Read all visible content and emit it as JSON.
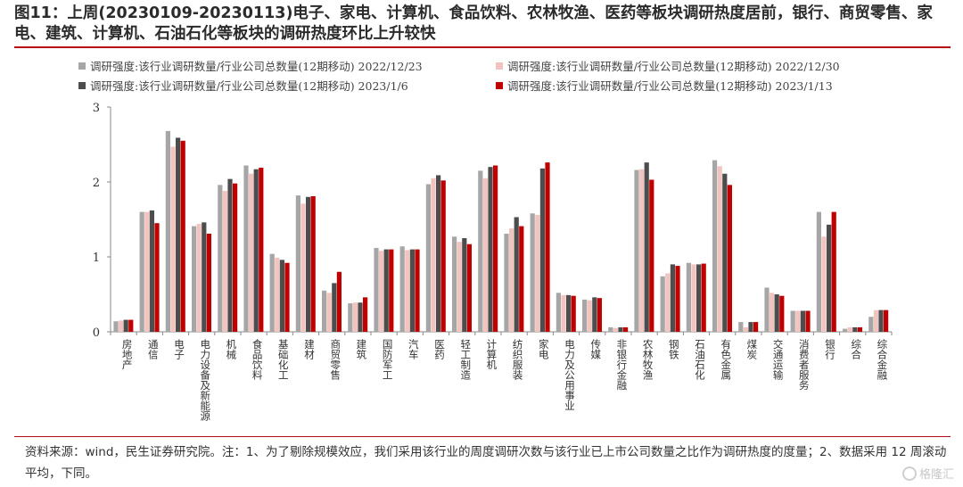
{
  "header": {
    "title": "图11：上周(20230109-20230113)电子、家电、计算机、食品饮料、农林牧渔、医药等板块调研热度居前，银行、商贸零售、家电、建筑、计算机、石油石化等板块的调研热度环比上升较快"
  },
  "chart_data": {
    "type": "bar",
    "ylim": [
      0,
      3
    ],
    "yticks": [
      0,
      1,
      2,
      3
    ],
    "grid": false,
    "legend_position": "top",
    "categories": [
      "房地产",
      "通信",
      "电子",
      "电力设备及新能源",
      "机械",
      "食品饮料",
      "基础化工",
      "建材",
      "商贸零售",
      "建筑",
      "国防军工",
      "汽车",
      "医药",
      "轻工制造",
      "计算机",
      "纺织服装",
      "家电",
      "电力及公用事业",
      "传媒",
      "非银行金融",
      "农林牧渔",
      "钢铁",
      "石油石化",
      "有色金属",
      "煤炭",
      "交通运输",
      "消费者服务",
      "银行",
      "综合",
      "综合金融"
    ],
    "series": [
      {
        "name": "调研强度:该行业调研数量/行业公司总数量(12期移动) 2022/12/23",
        "color": "#a6a6a6",
        "values": [
          0.14,
          1.6,
          2.68,
          1.41,
          1.96,
          2.22,
          1.04,
          1.82,
          0.55,
          0.38,
          1.12,
          1.14,
          1.97,
          1.27,
          2.15,
          1.31,
          1.58,
          0.52,
          0.43,
          0.06,
          2.16,
          0.74,
          0.92,
          2.29,
          0.13,
          0.59,
          0.28,
          1.6,
          0.04,
          0.2
        ]
      },
      {
        "name": "调研强度:该行业调研数量/行业公司总数量(12期移动) 2022/12/30",
        "color": "#f2c4c0",
        "values": [
          0.15,
          1.6,
          2.47,
          1.44,
          1.88,
          2.11,
          0.99,
          1.71,
          0.52,
          0.39,
          1.08,
          1.09,
          2.05,
          1.2,
          2.05,
          1.38,
          1.56,
          0.49,
          0.42,
          0.05,
          2.17,
          0.78,
          0.9,
          2.21,
          0.06,
          0.52,
          0.28,
          1.27,
          0.06,
          0.29
        ]
      },
      {
        "name": "调研强度:该行业调研数量/行业公司总数量(12期移动) 2023/1/6",
        "color": "#4d4d4d",
        "values": [
          0.16,
          1.62,
          2.59,
          1.46,
          2.04,
          2.17,
          0.96,
          1.8,
          0.65,
          0.39,
          1.1,
          1.1,
          2.09,
          1.25,
          2.2,
          1.53,
          2.18,
          0.49,
          0.46,
          0.06,
          2.26,
          0.9,
          0.9,
          2.11,
          0.13,
          0.5,
          0.28,
          1.43,
          0.06,
          0.29
        ]
      },
      {
        "name": "调研强度:该行业调研数量/行业公司总数量(12期移动) 2023/1/13",
        "color": "#c00000",
        "values": [
          0.16,
          1.45,
          2.55,
          1.31,
          1.98,
          2.19,
          0.92,
          1.81,
          0.8,
          0.46,
          1.1,
          1.1,
          2.02,
          1.17,
          2.22,
          1.41,
          2.26,
          0.48,
          0.45,
          0.06,
          2.03,
          0.88,
          0.91,
          1.96,
          0.13,
          0.48,
          0.28,
          1.6,
          0.06,
          0.29
        ]
      }
    ]
  },
  "footer": {
    "source": "资料来源：wind，民生证券研究院。注：1、为了剔除规模效应，我们采用该行业的周度调研次数与该行业已上市公司数量之比作为调研热度的度量；2、数据采用 12 周滚动平均，下同。"
  },
  "watermark": {
    "text": "格隆汇"
  }
}
